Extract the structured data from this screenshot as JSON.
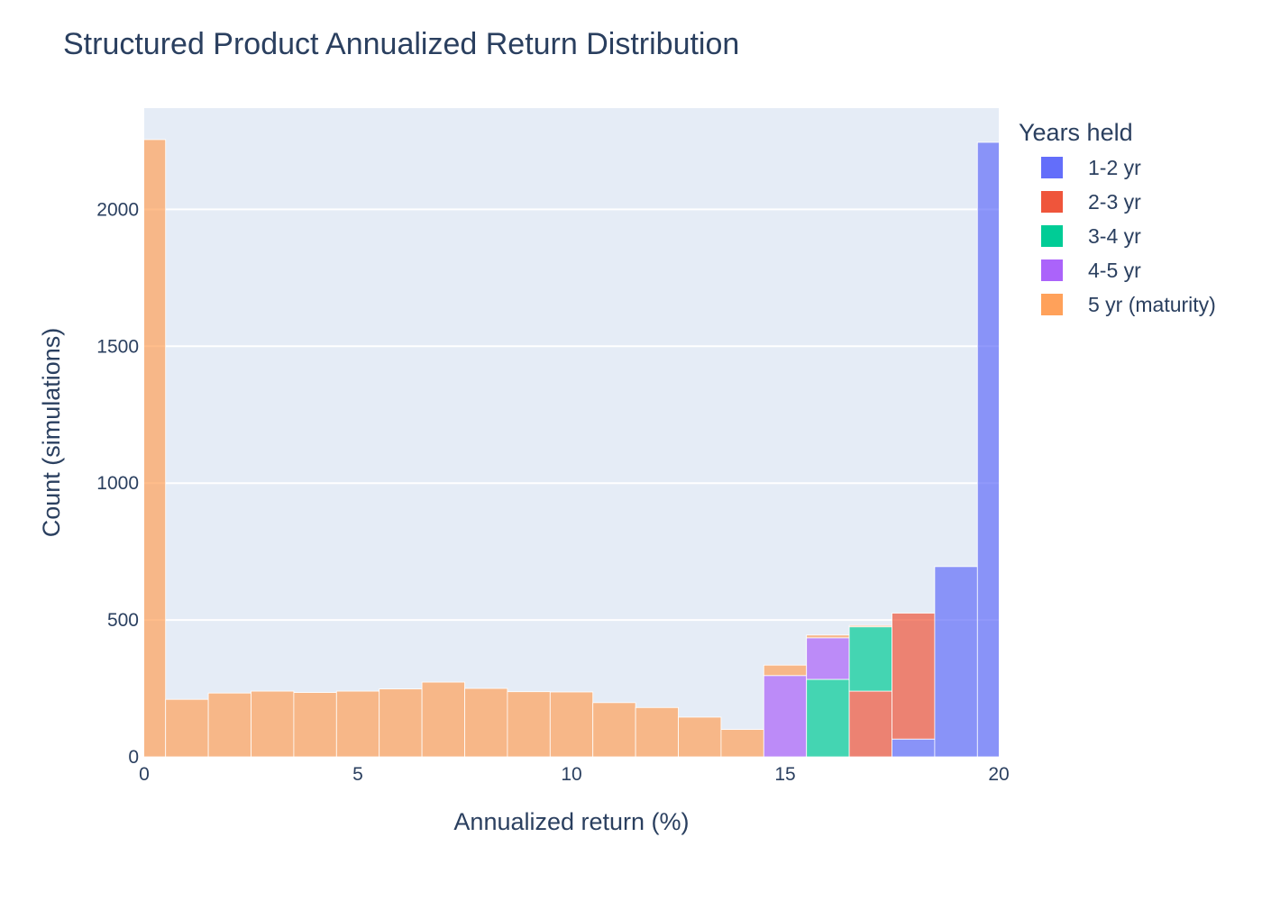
{
  "chart_data": {
    "type": "bar",
    "subtype": "stacked-histogram",
    "title": "Structured Product Annualized Return Distribution",
    "xlabel": "Annualized return (%)",
    "ylabel": "Count (simulations)",
    "xlim": [
      0,
      20
    ],
    "ylim": [
      0,
      2370
    ],
    "x_ticks": [
      0,
      5,
      10,
      15,
      20
    ],
    "y_ticks": [
      0,
      500,
      1000,
      1500,
      2000
    ],
    "grid": true,
    "legend_title": "Years held",
    "legend_position": "right",
    "bin_edges": [
      -0.5,
      0.5,
      1.5,
      2.5,
      3.5,
      4.5,
      5.5,
      6.5,
      7.5,
      8.5,
      9.5,
      10.5,
      11.5,
      12.5,
      13.5,
      14.5,
      15.5,
      16.5,
      17.5,
      18.5,
      19.5,
      20.5
    ],
    "series": [
      {
        "name": "1-2 yr",
        "color": "#636efa",
        "values": [
          0,
          0,
          0,
          0,
          0,
          0,
          0,
          0,
          0,
          0,
          0,
          0,
          0,
          0,
          0,
          0,
          0,
          0,
          65,
          695,
          2245
        ]
      },
      {
        "name": "2-3 yr",
        "color": "#ef553b",
        "values": [
          0,
          0,
          0,
          0,
          0,
          0,
          0,
          0,
          0,
          0,
          0,
          0,
          0,
          0,
          0,
          0,
          0,
          240,
          460,
          0,
          0
        ]
      },
      {
        "name": "3-4 yr",
        "color": "#00cc96",
        "values": [
          0,
          0,
          0,
          0,
          0,
          0,
          0,
          0,
          0,
          0,
          0,
          0,
          0,
          0,
          0,
          0,
          283,
          235,
          0,
          0,
          0
        ]
      },
      {
        "name": "4-5 yr",
        "color": "#ab63fa",
        "values": [
          0,
          0,
          0,
          0,
          0,
          0,
          0,
          0,
          0,
          0,
          0,
          0,
          0,
          0,
          0,
          297,
          152,
          0,
          0,
          0,
          0
        ]
      },
      {
        "name": "5 yr (maturity)",
        "color": "#ffa15a",
        "values": [
          2255,
          210,
          233,
          240,
          235,
          240,
          248,
          273,
          250,
          238,
          237,
          198,
          180,
          145,
          100,
          38,
          10,
          5,
          0,
          0,
          0
        ]
      }
    ]
  }
}
